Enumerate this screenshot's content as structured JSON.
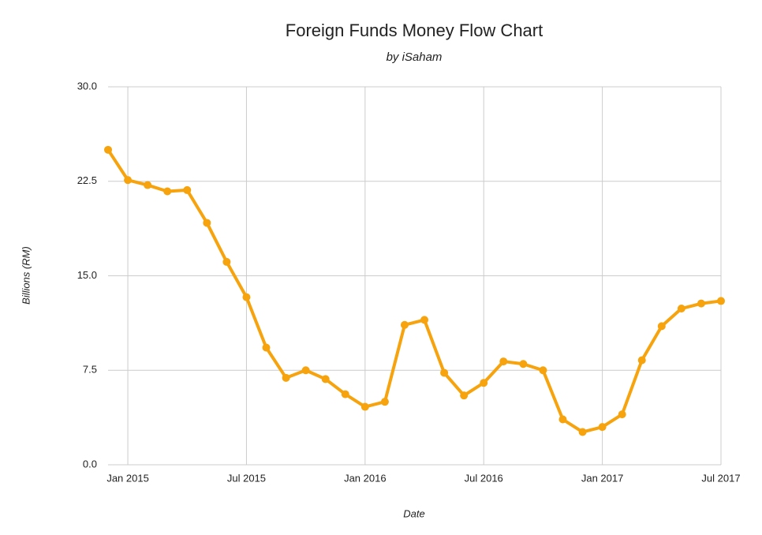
{
  "chart_data": {
    "type": "line",
    "title": "Foreign Funds Money Flow Chart",
    "subtitle": "by iSaham",
    "x_label": "Date",
    "y_label": "Billions (RM)",
    "x": [
      "2014-12",
      "2015-01",
      "2015-02",
      "2015-03",
      "2015-04",
      "2015-05",
      "2015-06",
      "2015-07",
      "2015-08",
      "2015-09",
      "2015-10",
      "2015-11",
      "2015-12",
      "2016-01",
      "2016-02",
      "2016-03",
      "2016-04",
      "2016-05",
      "2016-06",
      "2016-07",
      "2016-08",
      "2016-09",
      "2016-10",
      "2016-11",
      "2016-12",
      "2017-01",
      "2017-02",
      "2017-03",
      "2017-04",
      "2017-05",
      "2017-06",
      "2017-07"
    ],
    "series": [
      {
        "color": "#f6a30d",
        "values": [
          25.0,
          22.6,
          22.2,
          21.7,
          21.8,
          19.2,
          16.1,
          13.3,
          9.3,
          6.9,
          7.5,
          6.8,
          5.6,
          4.6,
          5.0,
          11.1,
          11.5,
          7.3,
          5.5,
          6.5,
          8.2,
          8.0,
          7.5,
          3.6,
          2.6,
          3.0,
          4.0,
          8.3,
          11.0,
          12.4,
          12.8,
          13.0
        ]
      }
    ],
    "xlim": [
      "2014-12",
      "2017-07"
    ],
    "xticks": [
      {
        "value": "2015-01",
        "label": "Jan 2015"
      },
      {
        "value": "2015-07",
        "label": "Jul 2015"
      },
      {
        "value": "2016-01",
        "label": "Jan 2016"
      },
      {
        "value": "2016-07",
        "label": "Jul 2016"
      },
      {
        "value": "2017-01",
        "label": "Jan 2017"
      },
      {
        "value": "2017-07",
        "label": "Jul 2017"
      }
    ],
    "ylim": [
      0,
      30
    ],
    "yticks": [
      {
        "value": 0,
        "label": "0.0"
      },
      7.5,
      {
        "value": 15,
        "label": "15.0"
      },
      22.5,
      {
        "value": 30,
        "label": "30.0"
      }
    ],
    "grid": true
  }
}
